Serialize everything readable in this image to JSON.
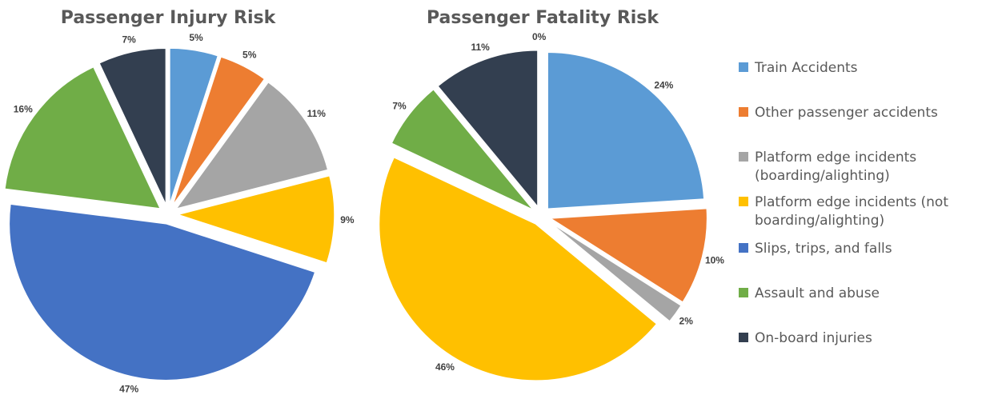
{
  "chart_data": [
    {
      "type": "pie",
      "title": "Passenger Injury Risk",
      "categories": [
        "Train Accidents",
        "Other passenger accidents",
        "Platform edge incidents (boarding/alighting)",
        "Platform edge incidents (not boarding/alighting)",
        "Slips, trips, and falls",
        "Assault and abuse",
        "On-board injuries"
      ],
      "values": [
        5,
        5,
        11,
        9,
        47,
        16,
        7
      ],
      "labels": [
        "5%",
        "5%",
        "11%",
        "9%",
        "47%",
        "16%",
        "7%"
      ],
      "exploded": true
    },
    {
      "type": "pie",
      "title": "Passenger Fatality Risk",
      "categories": [
        "Train Accidents",
        "Other passenger accidents",
        "Platform edge incidents (boarding/alighting)",
        "Platform edge incidents (not boarding/alighting)",
        "Slips, trips, and falls",
        "Assault and abuse",
        "On-board injuries"
      ],
      "values": [
        24,
        10,
        2,
        46,
        0,
        7,
        11
      ],
      "labels": [
        "24%",
        "10%",
        "2%",
        "46%",
        "",
        "7%",
        "11%"
      ],
      "extra_label": "0%",
      "exploded": true
    }
  ],
  "legend": {
    "placement": "right",
    "items": [
      {
        "label": "Train Accidents",
        "color": "#5B9BD5"
      },
      {
        "label": "Other passenger accidents",
        "color": "#ED7D31"
      },
      {
        "label": "Platform edge incidents",
        "label_line2": "(boarding/alighting)",
        "color": "#A5A5A5"
      },
      {
        "label": "Platform edge incidents (not",
        "label_line2": "boarding/alighting)",
        "color": "#FFC000"
      },
      {
        "label": "Slips, trips, and falls",
        "color": "#4472C4"
      },
      {
        "label": "Assault and abuse",
        "color": "#70AD47"
      },
      {
        "label": "On-board injuries",
        "color": "#333F50"
      }
    ]
  },
  "colors": [
    "#5B9BD5",
    "#ED7D31",
    "#A5A5A5",
    "#FFC000",
    "#4472C4",
    "#70AD47",
    "#333F50"
  ]
}
